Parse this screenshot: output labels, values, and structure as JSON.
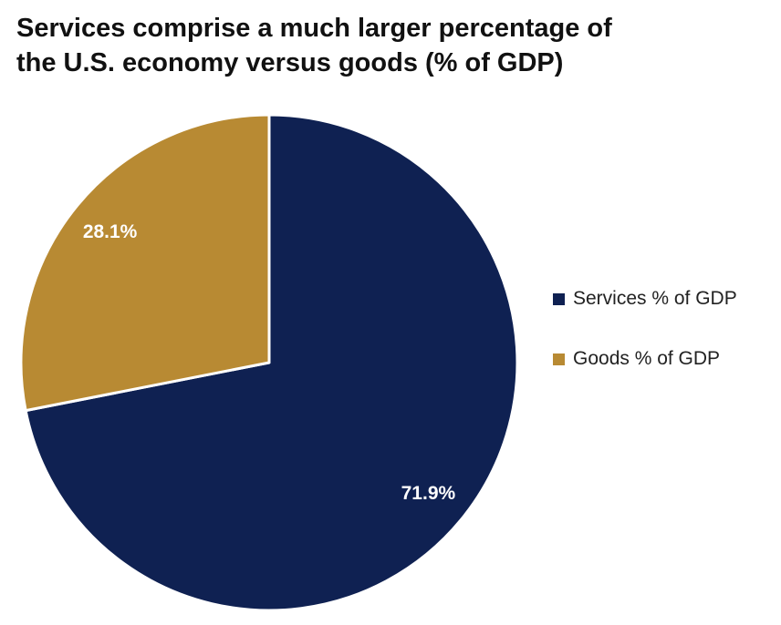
{
  "chart_data": {
    "type": "pie",
    "title_lines": [
      "Services comprise a much larger percentage of",
      "the U.S. economy versus goods (% of GDP)"
    ],
    "slices": [
      {
        "name": "Services % of GDP",
        "value": 71.9,
        "label": "71.9%",
        "color": "#0f2152"
      },
      {
        "name": "Goods % of GDP",
        "value": 28.1,
        "label": "28.1%",
        "color": "#b88a33"
      }
    ],
    "start": "12 o'clock",
    "direction": "clockwise",
    "legend_position": "right"
  }
}
